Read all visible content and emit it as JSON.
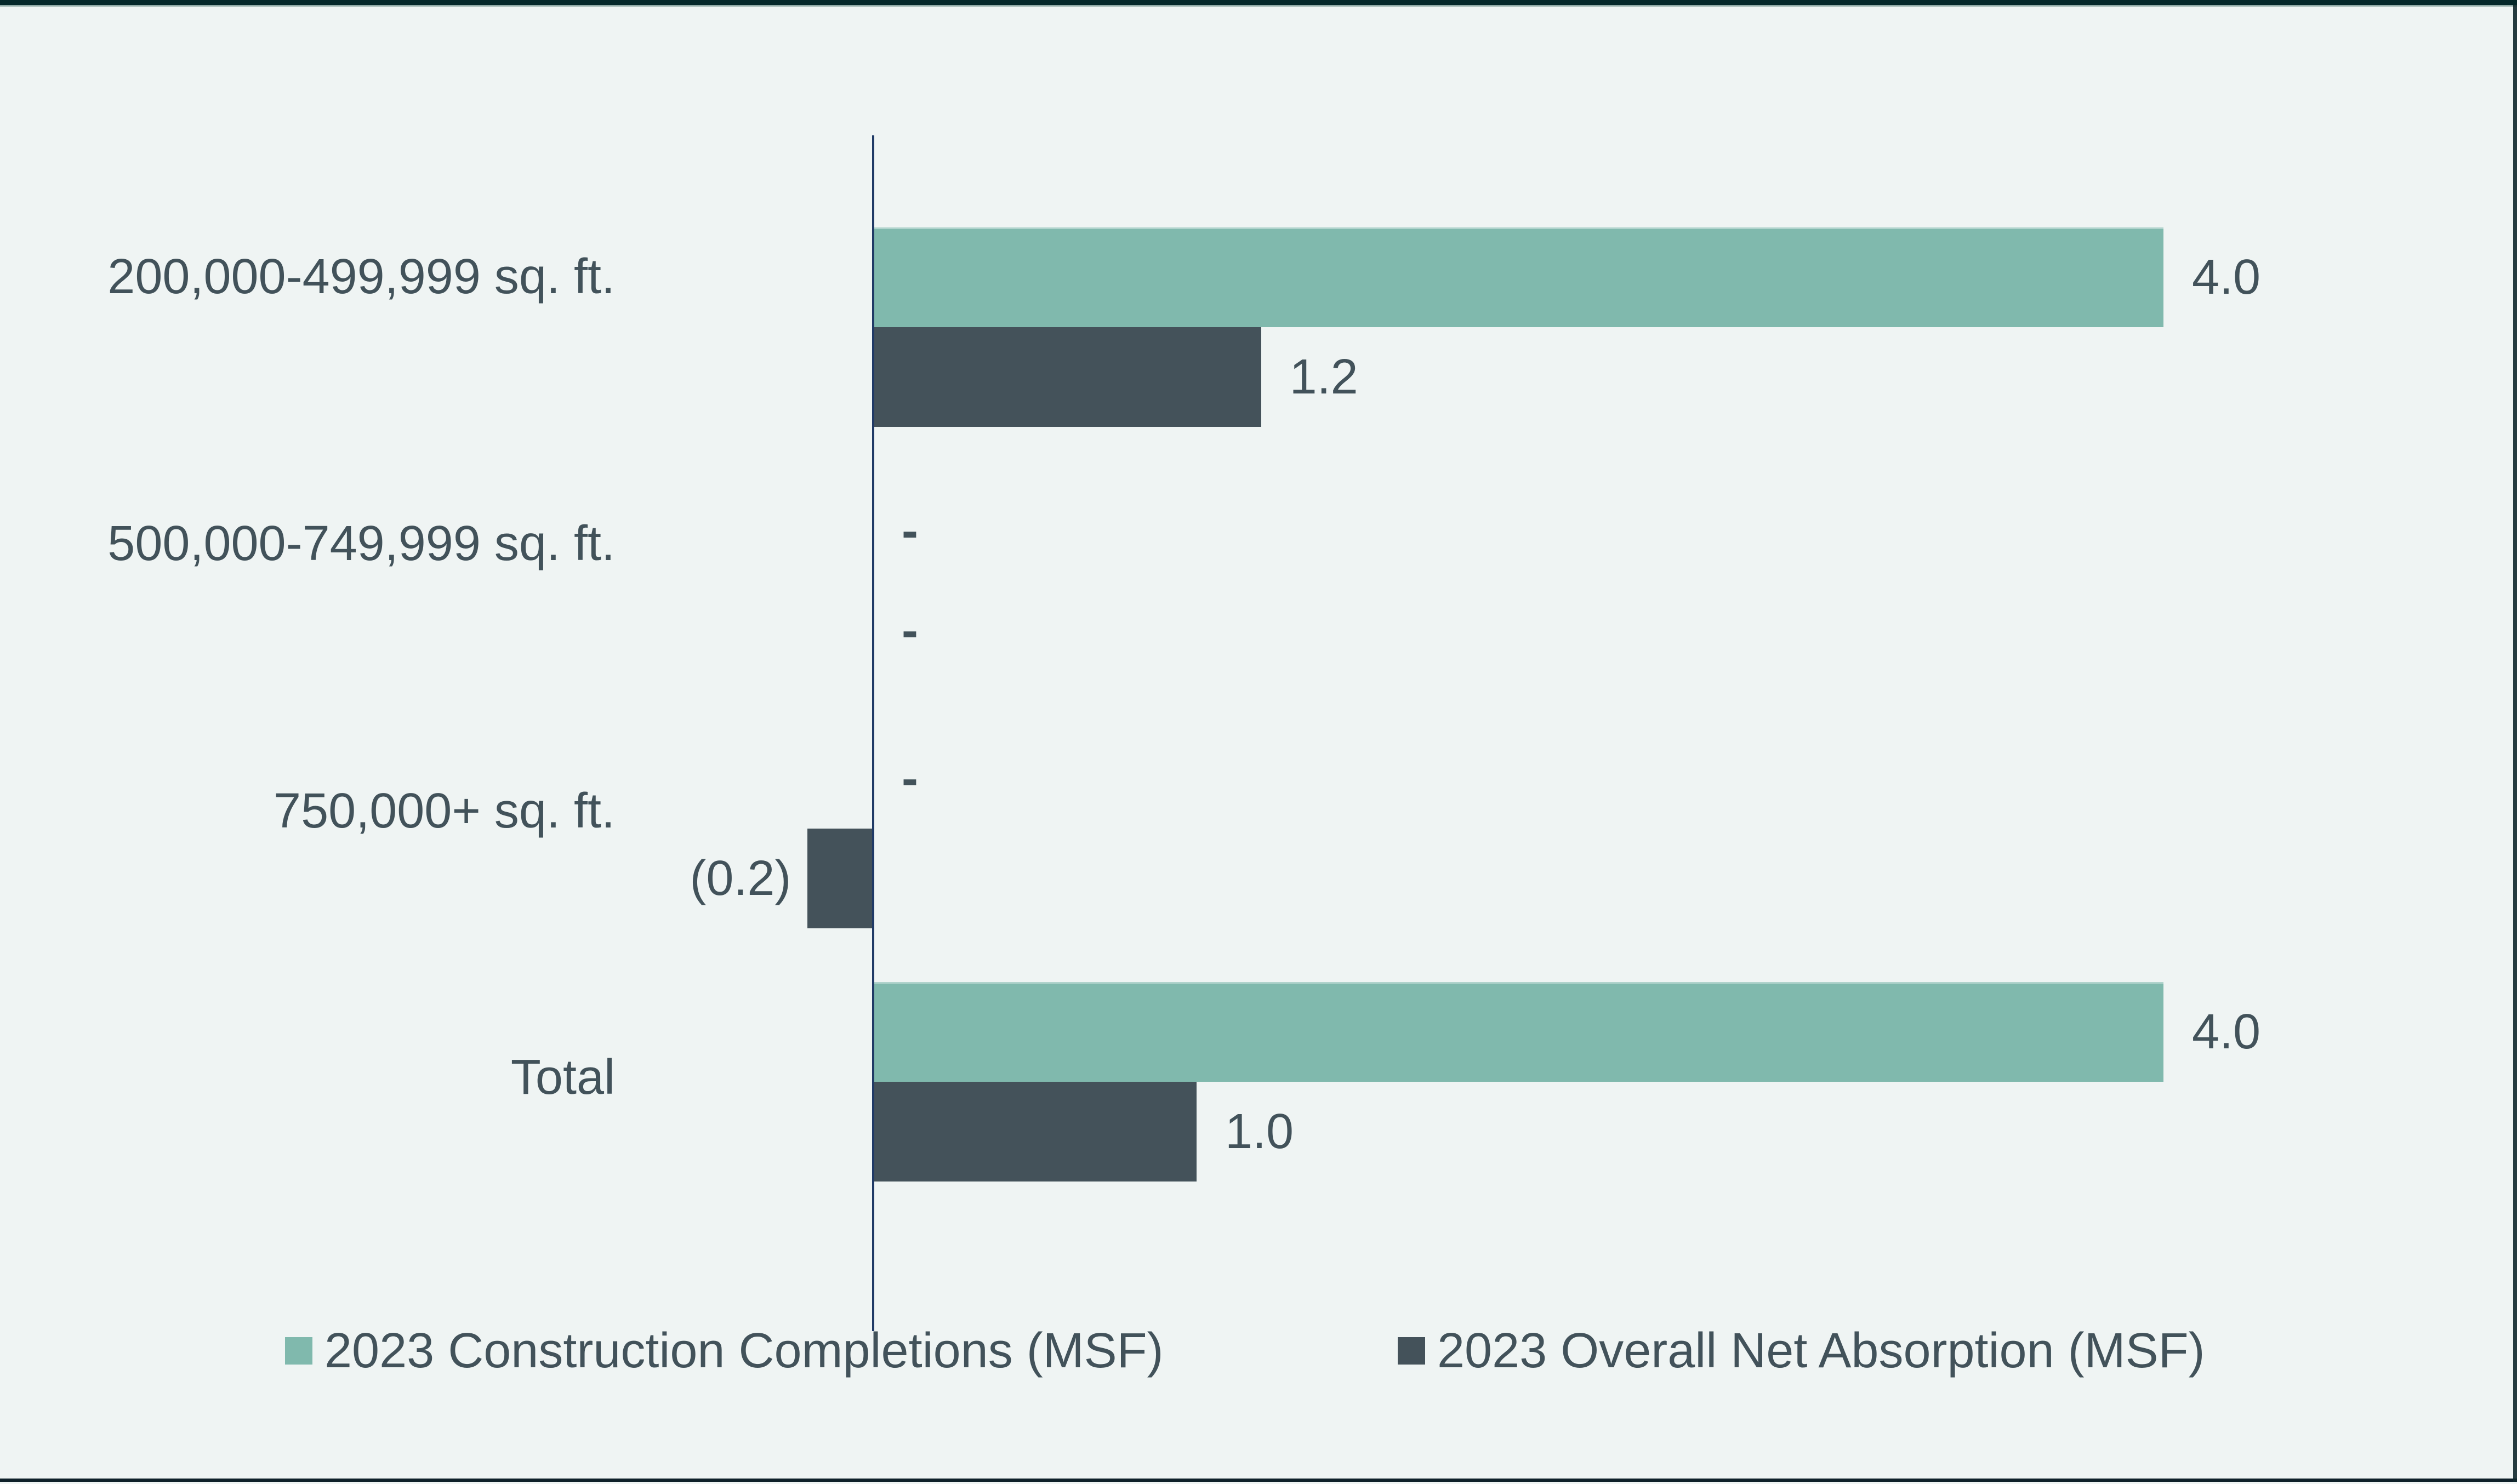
{
  "page": {
    "background_color": "#eff4f3",
    "top_bar_color": "#05282a",
    "top_bar_underline_color": "#71928c",
    "bottom_bar_color": "#0e2029",
    "right_bar_color": "#10282c",
    "text_color": "#42525a"
  },
  "chart_data": {
    "type": "bar",
    "orientation": "horizontal",
    "title": "",
    "xlabel": "",
    "ylabel": "",
    "gridlines": false,
    "legend_position": "bottom",
    "axis_color": "#203a66",
    "xlim": [
      -0.35,
      5.1
    ],
    "categories": [
      "200,000-499,999 sq. ft.",
      "500,000-749,999 sq. ft.",
      "750,000+ sq. ft.",
      "Total"
    ],
    "series": [
      {
        "name": "2023 Construction Completions (MSF)",
        "color": "#80b9ad",
        "values": [
          4.0,
          0,
          0,
          4.0
        ],
        "labels": [
          "4.0",
          "-",
          "-",
          "4.0"
        ]
      },
      {
        "name": "2023 Overall Net Absorption (MSF)",
        "color": "#44525a",
        "values": [
          1.2,
          0,
          -0.2,
          1.0
        ],
        "labels": [
          "1.2",
          "-",
          "(0.2)",
          "1.0"
        ]
      }
    ],
    "zero_value_label": "-",
    "negative_label_style": "parentheses"
  }
}
